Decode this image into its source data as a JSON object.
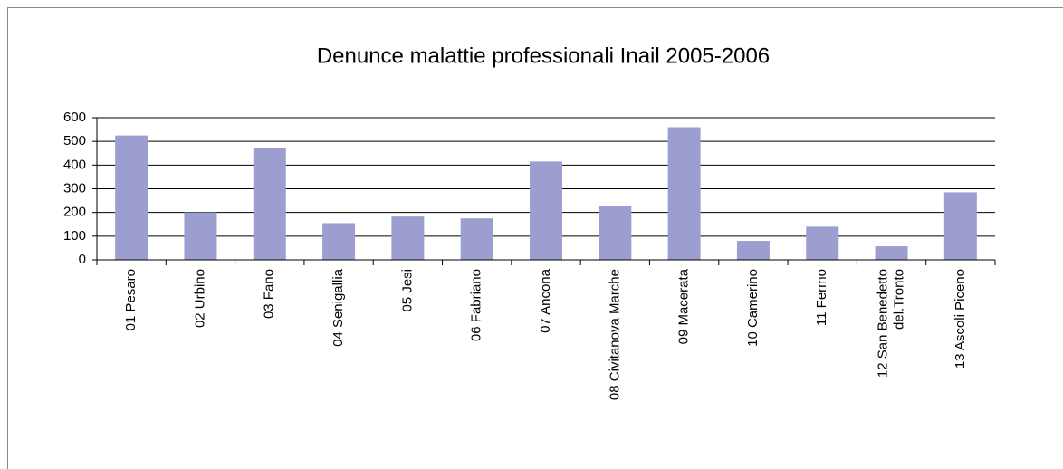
{
  "chart_data": {
    "type": "bar",
    "title": "Denunce malattie professionali Inail 2005-2006",
    "categories": [
      "01 Pesaro",
      "02 Urbino",
      "03 Fano",
      "04 Senigallia",
      "05 Jesi",
      "06 Fabriano",
      "07 Ancona",
      "08 Civitanova Marche",
      "09 Macerata",
      "10 Camerino",
      "11 Fermo",
      "12 San Benedetto del.Tronto",
      "13 Ascoli Piceno"
    ],
    "values": [
      525,
      200,
      470,
      155,
      183,
      175,
      415,
      228,
      560,
      80,
      140,
      57,
      285
    ],
    "color": "#9c9ecf",
    "ylim": [
      0,
      600
    ],
    "yticks": [
      0,
      100,
      200,
      300,
      400,
      500,
      600
    ],
    "grid": true
  }
}
